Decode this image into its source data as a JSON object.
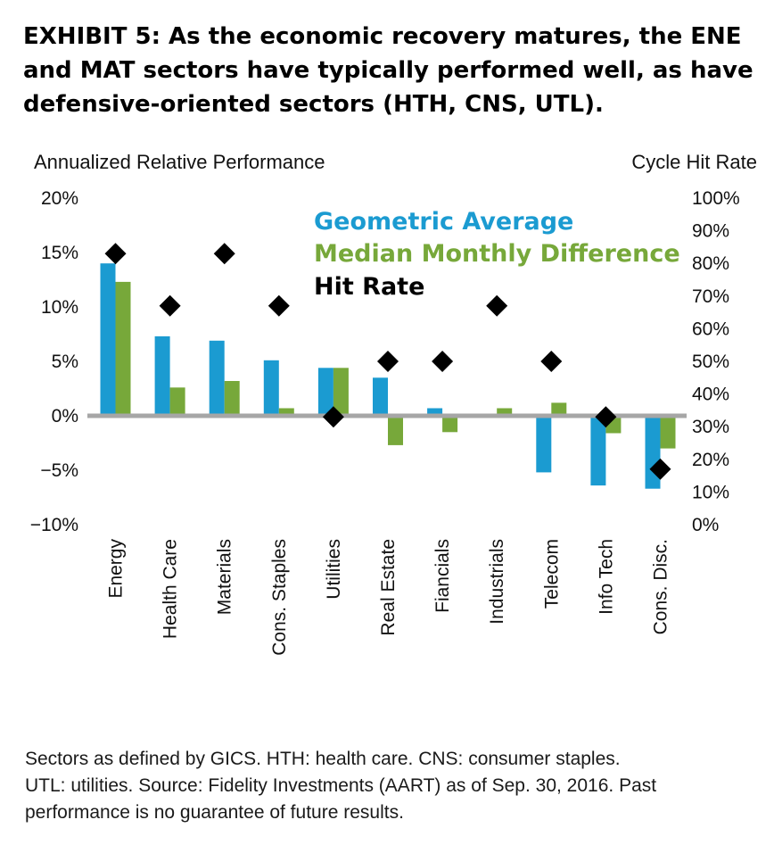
{
  "header": {
    "title_lines": [
      "EXHIBIT 5: As the economic recovery matures, the ENE",
      "and MAT sectors have typically performed well, as have",
      "defensive-oriented sectors (HTH, CNS, UTL)."
    ]
  },
  "footnote_lines": [
    "Sectors as defined by GICS. HTH: health care. CNS: consumer staples.",
    "UTL: utilities. Source: Fidelity Investments (AART) as of Sep. 30, 2016. Past",
    "performance is no guarantee of future results."
  ],
  "chart_data": {
    "type": "bar",
    "ylabel": "Annualized Relative Performance",
    "y2label": "Cycle Hit Rate",
    "ylim": [
      -10,
      20
    ],
    "y2lim": [
      0,
      100
    ],
    "yticks": [
      "20%",
      "15%",
      "10%",
      "5%",
      "0%",
      "−5%",
      "−10%"
    ],
    "y2ticks": [
      "100%",
      "90%",
      "80%",
      "70%",
      "60%",
      "50%",
      "40%",
      "30%",
      "20%",
      "10%",
      "0%"
    ],
    "categories": [
      "Energy",
      "Health Care",
      "Materials",
      "Cons. Staples",
      "Utilities",
      "Real Estate",
      "Fiancials",
      "Industrials",
      "Telecom",
      "Info Tech",
      "Cons. Disc."
    ],
    "series": [
      {
        "name": "Geometric Average",
        "color": "#1b9bd1",
        "axis": "left",
        "values": [
          14.0,
          7.3,
          6.9,
          5.1,
          4.4,
          3.5,
          0.7,
          0.0,
          -5.2,
          -6.4,
          -6.7
        ]
      },
      {
        "name": "Median Monthly Difference",
        "color": "#77a83a",
        "axis": "left",
        "values": [
          12.3,
          2.6,
          3.2,
          0.7,
          4.4,
          -2.7,
          -1.5,
          0.7,
          1.2,
          -1.6,
          -3.0
        ]
      },
      {
        "name": "Hit Rate",
        "color": "#000000",
        "axis": "right",
        "marker": "diamond",
        "values": [
          83,
          67,
          83,
          67,
          33,
          50,
          50,
          67,
          50,
          33,
          17
        ]
      }
    ],
    "legend_position": "top-center",
    "grid": false
  }
}
